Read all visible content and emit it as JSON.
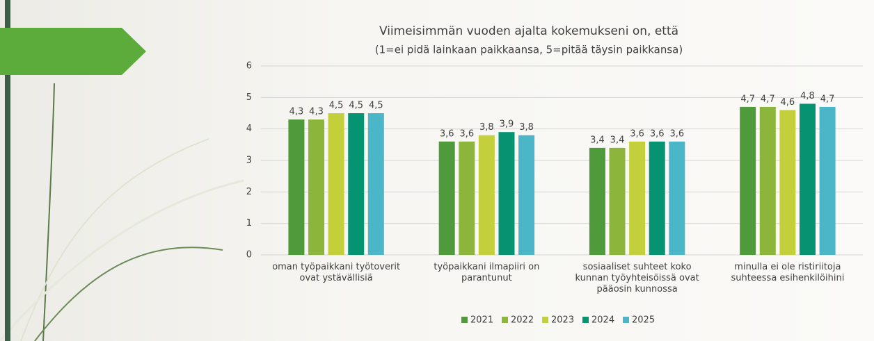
{
  "chart_data": {
    "type": "bar",
    "title": "Viimeisimmän vuoden ajalta kokemukseni on, että",
    "subtitle": "(1=ei pidä lainkaan paikkaansa, 5=pitää täysin paikkansa)",
    "categories": [
      "oman työpaikkani työtoverit\novat ystävällisiä",
      "työpaikkani ilmapiiri on\nparantunut",
      "sosiaaliset suhteet koko\nkunnan työyhteisöissä ovat\npääosin kunnossa",
      "minulla ei ole ristiriitoja\nsuhteessa esihenkilöihini"
    ],
    "series": [
      {
        "name": "2021",
        "color": "#4f9a3b",
        "values": [
          4.3,
          3.6,
          3.4,
          4.7
        ],
        "value_labels": [
          "4,3",
          "3,6",
          "3,4",
          "4,7"
        ]
      },
      {
        "name": "2022",
        "color": "#8cb63b",
        "values": [
          4.3,
          3.6,
          3.4,
          4.7
        ],
        "value_labels": [
          "4,3",
          "3,6",
          "3,4",
          "4,7"
        ]
      },
      {
        "name": "2023",
        "color": "#c3d03c",
        "values": [
          4.5,
          3.8,
          3.6,
          4.6
        ],
        "value_labels": [
          "4,5",
          "3,8",
          "3,6",
          "4,6"
        ]
      },
      {
        "name": "2024",
        "color": "#069372",
        "values": [
          4.5,
          3.9,
          3.6,
          4.8
        ],
        "value_labels": [
          "4,5",
          "3,9",
          "3,6",
          "4,8"
        ]
      },
      {
        "name": "2025",
        "color": "#4bb6c7",
        "values": [
          4.5,
          3.8,
          3.6,
          4.7
        ],
        "value_labels": [
          "4,5",
          "3,8",
          "3,6",
          "4,7"
        ]
      }
    ],
    "ylim": [
      0,
      6
    ],
    "yticks": [
      0,
      1,
      2,
      3,
      4,
      5,
      6
    ],
    "grid": true,
    "legend": "bottom"
  }
}
